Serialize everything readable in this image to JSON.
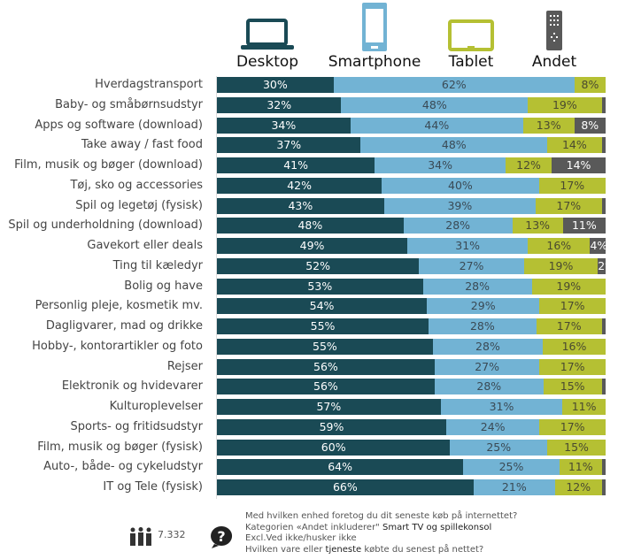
{
  "chart_data": {
    "type": "bar",
    "orientation": "horizontal",
    "stacked": true,
    "legend_placement": "top",
    "series": [
      {
        "name": "Desktop",
        "color": "#1a4a55",
        "icon": "laptop-icon",
        "values": [
          30,
          32,
          34,
          37,
          41,
          42,
          43,
          48,
          49,
          52,
          53,
          54,
          55,
          55,
          56,
          56,
          57,
          59,
          60,
          64,
          66
        ]
      },
      {
        "name": "Smartphone",
        "color": "#72b3d4",
        "icon": "smartphone-icon",
        "values": [
          62,
          48,
          44,
          48,
          34,
          40,
          39,
          28,
          31,
          27,
          28,
          29,
          28,
          28,
          27,
          28,
          31,
          24,
          25,
          25,
          21
        ]
      },
      {
        "name": "Tablet",
        "color": "#b5c033",
        "icon": "tablet-icon",
        "values": [
          8,
          19,
          13,
          14,
          12,
          17,
          17,
          13,
          16,
          19,
          19,
          17,
          17,
          16,
          17,
          15,
          11,
          17,
          15,
          11,
          12
        ]
      },
      {
        "name": "Andet",
        "color": "#595959",
        "icon": "remote-control-icon",
        "values": [
          0,
          1,
          8,
          1,
          14,
          0,
          1,
          11,
          4,
          2,
          0,
          0,
          1,
          0,
          0,
          1,
          0,
          0,
          0,
          1,
          1
        ]
      }
    ],
    "categories": [
      "Hverdagstransport",
      "Baby- og småbørnsudstyr",
      "Apps og software (download)",
      "Take away / fast food",
      "Film, musik og bøger (download)",
      "Tøj, sko og accessories",
      "Spil og legetøj (fysisk)",
      "Spil og underholdning (download)",
      "Gavekort eller deals",
      "Ting til kæledyr",
      "Bolig og have",
      "Personlig pleje, kosmetik mv.",
      "Dagligvarer, mad og drikke",
      "Hobby-, kontorartikler og foto",
      "Rejser",
      "Elektronik og hvidevarer",
      "Kulturoplevelser",
      "Sports- og fritidsudstyr",
      "Film, musik og bøger (fysisk)",
      "Auto-, både- og cykeludstyr",
      "IT og Tele (fysisk)"
    ],
    "unit": "%"
  },
  "footer": {
    "respondents_icon": "people-icon",
    "respondents": "7.332",
    "question_icon": "question-bubble-icon",
    "line1": "Med hvilken enhed foretog du dit seneste køb på internettet?",
    "line2a": "Kategorien «Andet inkluderer\"",
    "line2b": " Smart TV og spillekonsol",
    "line3": "Excl.Ved ikke/husker ikke",
    "line4a": "Hvilken vare eller ",
    "line4b": "tjeneste",
    "line4c": " købte du senest på nettet?"
  }
}
